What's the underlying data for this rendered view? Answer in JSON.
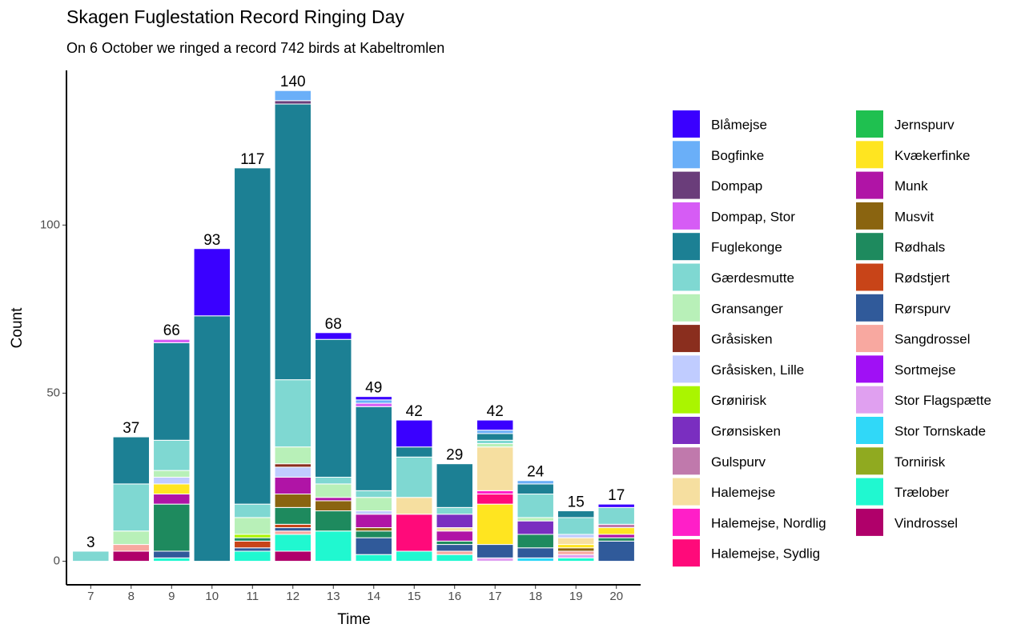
{
  "chart_data": {
    "type": "stacked_bar",
    "title": "Skagen Fuglestation Record Ringing Day",
    "subtitle": "On 6 October we ringed a record 742 birds at Kabeltromlen",
    "x_label": "Time",
    "y_label": "Count",
    "categories": [
      "7",
      "8",
      "9",
      "10",
      "11",
      "12",
      "13",
      "14",
      "15",
      "16",
      "17",
      "18",
      "19",
      "20"
    ],
    "totals": [
      3,
      37,
      66,
      93,
      117,
      140,
      68,
      49,
      42,
      29,
      42,
      24,
      15,
      17
    ],
    "ylim": [
      -7,
      146
    ],
    "yticks": [
      0,
      50,
      100
    ],
    "series": [
      {
        "name": "Blåmejse",
        "color": "#3a00ff",
        "values": [
          0,
          0,
          0,
          20,
          0,
          0,
          2,
          1,
          8,
          0,
          3,
          0,
          0,
          1
        ]
      },
      {
        "name": "Bogfinke",
        "color": "#6aaff8",
        "values": [
          0,
          0,
          0,
          0,
          0,
          3,
          0,
          1,
          0,
          0,
          1,
          1,
          0,
          0
        ]
      },
      {
        "name": "Dompap",
        "color": "#6a3d7a",
        "values": [
          0,
          0,
          0,
          0,
          0,
          1,
          0,
          0,
          0,
          0,
          0,
          0,
          0,
          0
        ]
      },
      {
        "name": "Dompap, Stor",
        "color": "#d65cf5",
        "values": [
          0,
          0,
          1,
          0,
          0,
          0,
          0,
          1,
          0,
          0,
          0,
          0,
          0,
          0
        ]
      },
      {
        "name": "Fuglekonge",
        "color": "#1c8094",
        "values": [
          0,
          14,
          29,
          73,
          100,
          82,
          41,
          25,
          3,
          13,
          2,
          3,
          2,
          0
        ]
      },
      {
        "name": "Gærdesmutte",
        "color": "#7fd8d2",
        "values": [
          3,
          14,
          9,
          0,
          4,
          20,
          2,
          2,
          12,
          2,
          1,
          7,
          5,
          5
        ]
      },
      {
        "name": "Gransanger",
        "color": "#b8f0b8",
        "values": [
          0,
          4,
          2,
          0,
          5,
          5,
          4,
          4,
          0,
          0,
          1,
          1,
          0,
          0
        ]
      },
      {
        "name": "Gråsisken",
        "color": "#8a2e1e",
        "values": [
          0,
          0,
          0,
          0,
          0,
          1,
          0,
          0,
          0,
          0,
          0,
          0,
          0,
          0
        ]
      },
      {
        "name": "Gråsisken, Lille",
        "color": "#c0ccff",
        "values": [
          0,
          0,
          2,
          0,
          0,
          3,
          0,
          1,
          0,
          0,
          0,
          0,
          1,
          0
        ]
      },
      {
        "name": "Grønirisk",
        "color": "#aaf500",
        "values": [
          0,
          0,
          0,
          0,
          1,
          0,
          0,
          0,
          0,
          0,
          0,
          0,
          0,
          0
        ]
      },
      {
        "name": "Grønsisken",
        "color": "#7a2ec0",
        "values": [
          0,
          0,
          0,
          0,
          0,
          0,
          0,
          0,
          0,
          4,
          0,
          4,
          0,
          0
        ]
      },
      {
        "name": "Gulspurv",
        "color": "#c079ac",
        "values": [
          0,
          0,
          0,
          0,
          0,
          0,
          0,
          0,
          0,
          0,
          0,
          0,
          0,
          1
        ]
      },
      {
        "name": "Halemejse",
        "color": "#f6dfa0",
        "values": [
          0,
          0,
          0,
          0,
          0,
          0,
          0,
          0,
          5,
          1,
          13,
          0,
          2,
          0
        ]
      },
      {
        "name": "Halemejse, Nordlig",
        "color": "#ff1fc8",
        "values": [
          0,
          0,
          0,
          0,
          0,
          0,
          0,
          0,
          0,
          0,
          1,
          0,
          0,
          0
        ]
      },
      {
        "name": "Halemejse, Sydlig",
        "color": "#ff0a7a",
        "values": [
          0,
          0,
          0,
          0,
          0,
          0,
          0,
          0,
          11,
          0,
          3,
          0,
          0,
          0
        ]
      },
      {
        "name": "Jernspurv",
        "color": "#1fc050",
        "values": [
          0,
          0,
          0,
          0,
          0,
          0,
          0,
          0,
          0,
          0,
          0,
          0,
          0,
          0
        ]
      },
      {
        "name": "Kvækerfinke",
        "color": "#ffe520",
        "values": [
          0,
          0,
          3,
          0,
          0,
          0,
          0,
          0,
          0,
          0,
          12,
          0,
          1,
          2
        ]
      },
      {
        "name": "Munk",
        "color": "#b014a6",
        "values": [
          0,
          0,
          3,
          0,
          0,
          5,
          1,
          4,
          0,
          3,
          0,
          0,
          0,
          1
        ]
      },
      {
        "name": "Musvit",
        "color": "#8a6410",
        "values": [
          0,
          0,
          0,
          0,
          0,
          4,
          3,
          1,
          0,
          0,
          0,
          0,
          1,
          0
        ]
      },
      {
        "name": "Rødhals",
        "color": "#1e8a5e",
        "values": [
          0,
          0,
          14,
          0,
          1,
          5,
          6,
          2,
          0,
          1,
          0,
          4,
          0,
          1
        ]
      },
      {
        "name": "Rødstjert",
        "color": "#c84418",
        "values": [
          0,
          0,
          0,
          0,
          2,
          1,
          0,
          0,
          0,
          0,
          0,
          0,
          0,
          0
        ]
      },
      {
        "name": "Rørspurv",
        "color": "#305a9a",
        "values": [
          0,
          0,
          2,
          0,
          1,
          1,
          0,
          5,
          0,
          2,
          4,
          3,
          0,
          6
        ]
      },
      {
        "name": "Sangdrossel",
        "color": "#f8a8a0",
        "values": [
          0,
          2,
          0,
          0,
          0,
          1,
          0,
          0,
          0,
          1,
          0,
          0,
          1,
          0
        ]
      },
      {
        "name": "Sortmejse",
        "color": "#a010f5",
        "values": [
          0,
          0,
          0,
          0,
          0,
          0,
          0,
          0,
          0,
          0,
          0,
          0,
          0,
          0
        ]
      },
      {
        "name": "Stor Flagspætte",
        "color": "#e0a0f0",
        "values": [
          0,
          0,
          0,
          0,
          0,
          0,
          0,
          0,
          0,
          0,
          1,
          0,
          1,
          0
        ]
      },
      {
        "name": "Stor Tornskade",
        "color": "#30d8f8",
        "values": [
          0,
          0,
          0,
          0,
          0,
          0,
          0,
          0,
          0,
          0,
          0,
          1,
          0,
          0
        ]
      },
      {
        "name": "Tornirisk",
        "color": "#90aa20",
        "values": [
          0,
          0,
          0,
          0,
          0,
          0,
          0,
          0,
          0,
          0,
          0,
          0,
          0,
          0
        ]
      },
      {
        "name": "Trælober",
        "color": "#20f8d0",
        "values": [
          0,
          0,
          1,
          0,
          3,
          5,
          9,
          2,
          3,
          2,
          0,
          0,
          1,
          0
        ]
      },
      {
        "name": "Vindrossel",
        "color": "#b0006a",
        "values": [
          0,
          3,
          0,
          0,
          0,
          3,
          0,
          0,
          0,
          0,
          0,
          0,
          0,
          0
        ]
      }
    ]
  }
}
